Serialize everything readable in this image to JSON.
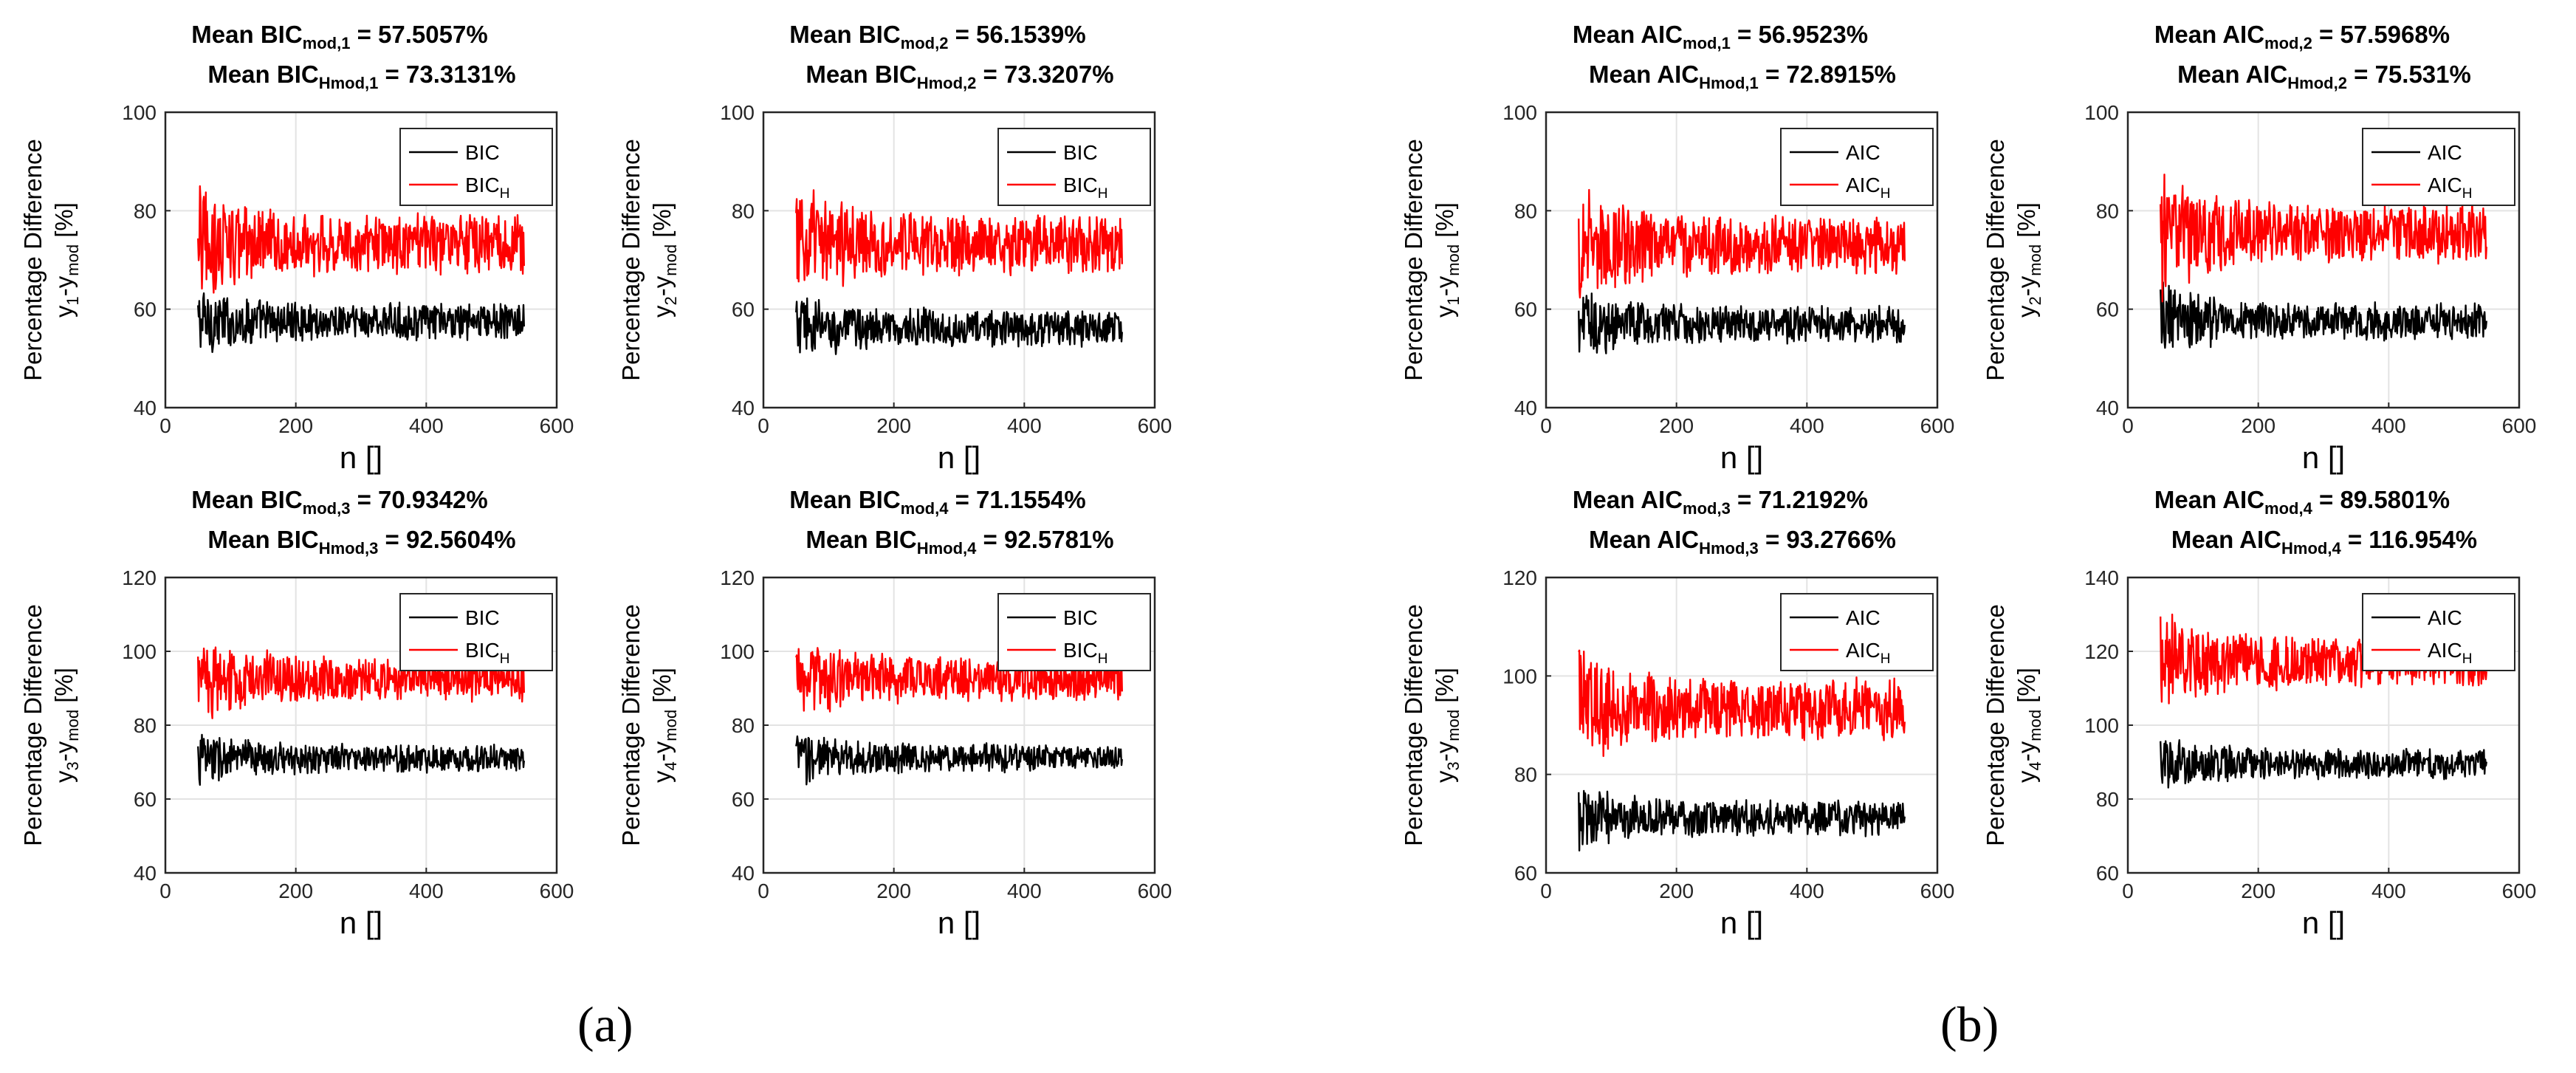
{
  "panel_labels": {
    "a": "(a)",
    "b": "(b)"
  },
  "chart_data": [
    {
      "id": "a1",
      "type": "line",
      "title": {
        "line1": {
          "prefix": "Mean BIC",
          "sub": "mod,1",
          "suffix": " = 57.5057%"
        },
        "line2": {
          "prefix": "Mean BIC",
          "sub": "Hmod,1",
          "suffix": " = 73.3131%"
        }
      },
      "ylabel": {
        "line1": "Percentage Difference",
        "pre1": "y",
        "sub1": "1",
        "mid": "-y",
        "sub2": "mod",
        "post": " [%]"
      },
      "xlabel": "n []",
      "xlim": [
        0,
        600
      ],
      "ylim": [
        40,
        100
      ],
      "xticks": [
        0,
        200,
        400,
        600
      ],
      "yticks": [
        40,
        60,
        80,
        100
      ],
      "grid": true,
      "legend": [
        {
          "base": "BIC",
          "sub": "",
          "color": "#000000"
        },
        {
          "base": "BIC",
          "sub": "H",
          "color": "#ff0000"
        }
      ],
      "legend_position": "top-right",
      "x_range": [
        50,
        550
      ],
      "series": [
        {
          "name": "BIC",
          "color": "#000000",
          "mean": 57.5,
          "noise": 2.6,
          "start_noise": 5.5
        },
        {
          "name": "BIC_H",
          "color": "#ff0000",
          "mean": 73.3,
          "noise": 4.2,
          "start_noise": 9
        }
      ]
    },
    {
      "id": "a2",
      "type": "line",
      "title": {
        "line1": {
          "prefix": "Mean BIC",
          "sub": "mod,2",
          "suffix": " = 56.1539%"
        },
        "line2": {
          "prefix": "Mean BIC",
          "sub": "Hmod,2",
          "suffix": " = 73.3207%"
        }
      },
      "ylabel": {
        "line1": "Percentage Difference",
        "pre1": "y",
        "sub1": "2",
        "mid": "-y",
        "sub2": "mod",
        "post": " [%]"
      },
      "xlabel": "n []",
      "xlim": [
        0,
        600
      ],
      "ylim": [
        40,
        100
      ],
      "xticks": [
        0,
        200,
        400,
        600
      ],
      "yticks": [
        40,
        60,
        80,
        100
      ],
      "grid": true,
      "legend": [
        {
          "base": "BIC",
          "sub": "",
          "color": "#000000"
        },
        {
          "base": "BIC",
          "sub": "H",
          "color": "#ff0000"
        }
      ],
      "legend_position": "top-right",
      "x_range": [
        50,
        550
      ],
      "series": [
        {
          "name": "BIC",
          "color": "#000000",
          "mean": 56.2,
          "noise": 2.6,
          "start_noise": 5.5
        },
        {
          "name": "BIC_H",
          "color": "#ff0000",
          "mean": 73.3,
          "noise": 4.2,
          "start_noise": 9
        }
      ]
    },
    {
      "id": "a3",
      "type": "line",
      "title": {
        "line1": {
          "prefix": "Mean BIC",
          "sub": "mod,3",
          "suffix": " = 70.9342%"
        },
        "line2": {
          "prefix": "Mean BIC",
          "sub": "Hmod,3",
          "suffix": " = 92.5604%"
        }
      },
      "ylabel": {
        "line1": "Percentage Difference",
        "pre1": "y",
        "sub1": "3",
        "mid": "-y",
        "sub2": "mod",
        "post": " [%]"
      },
      "xlabel": "n []",
      "xlim": [
        0,
        600
      ],
      "ylim": [
        40,
        120
      ],
      "xticks": [
        0,
        200,
        400,
        600
      ],
      "yticks": [
        40,
        60,
        80,
        100,
        120
      ],
      "grid": true,
      "legend": [
        {
          "base": "BIC",
          "sub": "",
          "color": "#000000"
        },
        {
          "base": "BIC",
          "sub": "H",
          "color": "#ff0000"
        }
      ],
      "legend_position": "top-right",
      "x_range": [
        50,
        550
      ],
      "series": [
        {
          "name": "BIC",
          "color": "#000000",
          "mean": 71,
          "noise": 2.6,
          "start_noise": 6
        },
        {
          "name": "BIC_H",
          "color": "#ff0000",
          "mean": 92.6,
          "noise": 4.2,
          "start_noise": 9
        }
      ]
    },
    {
      "id": "a4",
      "type": "line",
      "title": {
        "line1": {
          "prefix": "Mean BIC",
          "sub": "mod,4",
          "suffix": " = 71.1554%"
        },
        "line2": {
          "prefix": "Mean BIC",
          "sub": "Hmod,4",
          "suffix": " = 92.5781%"
        }
      },
      "ylabel": {
        "line1": "Percentage Difference",
        "pre1": "y",
        "sub1": "4",
        "mid": "-y",
        "sub2": "mod",
        "post": " [%]"
      },
      "xlabel": "n []",
      "xlim": [
        0,
        600
      ],
      "ylim": [
        40,
        120
      ],
      "xticks": [
        0,
        200,
        400,
        600
      ],
      "yticks": [
        40,
        60,
        80,
        100,
        120
      ],
      "grid": true,
      "legend": [
        {
          "base": "BIC",
          "sub": "",
          "color": "#000000"
        },
        {
          "base": "BIC",
          "sub": "H",
          "color": "#ff0000"
        }
      ],
      "legend_position": "top-right",
      "x_range": [
        50,
        550
      ],
      "series": [
        {
          "name": "BIC",
          "color": "#000000",
          "mean": 71.2,
          "noise": 2.6,
          "start_noise": 6
        },
        {
          "name": "BIC_H",
          "color": "#ff0000",
          "mean": 92.6,
          "noise": 4.2,
          "start_noise": 9
        }
      ]
    },
    {
      "id": "b1",
      "type": "line",
      "title": {
        "line1": {
          "prefix": "Mean AIC",
          "sub": "mod,1",
          "suffix": " = 56.9523%"
        },
        "line2": {
          "prefix": "Mean AIC",
          "sub": "Hmod,1",
          "suffix": " = 72.8915%"
        }
      },
      "ylabel": {
        "line1": "Percentage Difference",
        "pre1": "y",
        "sub1": "1",
        "mid": "-y",
        "sub2": "mod",
        "post": " [%]"
      },
      "xlabel": "n []",
      "xlim": [
        0,
        600
      ],
      "ylim": [
        40,
        100
      ],
      "xticks": [
        0,
        200,
        400,
        600
      ],
      "yticks": [
        40,
        60,
        80,
        100
      ],
      "grid": true,
      "legend": [
        {
          "base": "AIC",
          "sub": "",
          "color": "#000000"
        },
        {
          "base": "AIC",
          "sub": "H",
          "color": "#ff0000"
        }
      ],
      "legend_position": "top-right",
      "x_range": [
        50,
        550
      ],
      "series": [
        {
          "name": "AIC",
          "color": "#000000",
          "mean": 57,
          "noise": 2.6,
          "start_noise": 5.5
        },
        {
          "name": "AIC_H",
          "color": "#ff0000",
          "mean": 72.9,
          "noise": 4.2,
          "start_noise": 9
        }
      ]
    },
    {
      "id": "b2",
      "type": "line",
      "title": {
        "line1": {
          "prefix": "Mean AIC",
          "sub": "mod,2",
          "suffix": " = 57.5968%"
        },
        "line2": {
          "prefix": "Mean AIC",
          "sub": "Hmod,2",
          "suffix": " = 75.531%"
        }
      },
      "ylabel": {
        "line1": "Percentage Difference",
        "pre1": "y",
        "sub1": "2",
        "mid": "-y",
        "sub2": "mod",
        "post": " [%]"
      },
      "xlabel": "n []",
      "xlim": [
        0,
        600
      ],
      "ylim": [
        40,
        100
      ],
      "xticks": [
        0,
        200,
        400,
        600
      ],
      "yticks": [
        40,
        60,
        80,
        100
      ],
      "grid": true,
      "legend": [
        {
          "base": "AIC",
          "sub": "",
          "color": "#000000"
        },
        {
          "base": "AIC",
          "sub": "H",
          "color": "#ff0000"
        }
      ],
      "legend_position": "top-right",
      "x_range": [
        50,
        550
      ],
      "series": [
        {
          "name": "AIC",
          "color": "#000000",
          "mean": 57.6,
          "noise": 2.6,
          "start_noise": 6
        },
        {
          "name": "AIC_H",
          "color": "#ff0000",
          "mean": 75.5,
          "noise": 4.2,
          "start_noise": 10
        }
      ]
    },
    {
      "id": "b3",
      "type": "line",
      "title": {
        "line1": {
          "prefix": "Mean AIC",
          "sub": "mod,3",
          "suffix": " = 71.2192%"
        },
        "line2": {
          "prefix": "Mean AIC",
          "sub": "Hmod,3",
          "suffix": " = 93.2766%"
        }
      },
      "ylabel": {
        "line1": "Percentage Difference",
        "pre1": "y",
        "sub1": "3",
        "mid": "-y",
        "sub2": "mod",
        "post": " [%]"
      },
      "xlabel": "n []",
      "xlim": [
        0,
        600
      ],
      "ylim": [
        60,
        120
      ],
      "xticks": [
        0,
        200,
        400,
        600
      ],
      "yticks": [
        60,
        80,
        100,
        120
      ],
      "grid": true,
      "legend": [
        {
          "base": "AIC",
          "sub": "",
          "color": "#000000"
        },
        {
          "base": "AIC",
          "sub": "H",
          "color": "#ff0000"
        }
      ],
      "legend_position": "top-right",
      "x_range": [
        50,
        550
      ],
      "series": [
        {
          "name": "AIC",
          "color": "#000000",
          "mean": 71.2,
          "noise": 2.6,
          "start_noise": 5
        },
        {
          "name": "AIC_H",
          "color": "#ff0000",
          "mean": 93.3,
          "noise": 4.4,
          "start_noise": 10
        }
      ]
    },
    {
      "id": "b4",
      "type": "line",
      "title": {
        "line1": {
          "prefix": "Mean AIC",
          "sub": "mod,4",
          "suffix": " = 89.5801%"
        },
        "line2": {
          "prefix": "Mean AIC",
          "sub": "Hmod,4",
          "suffix": " = 116.954%"
        }
      },
      "ylabel": {
        "line1": "Percentage Difference",
        "pre1": "y",
        "sub1": "4",
        "mid": "-y",
        "sub2": "mod",
        "post": " [%]"
      },
      "xlabel": "n []",
      "xlim": [
        0,
        600
      ],
      "ylim": [
        60,
        140
      ],
      "xticks": [
        0,
        200,
        400,
        600
      ],
      "yticks": [
        60,
        80,
        100,
        120,
        140
      ],
      "grid": true,
      "legend": [
        {
          "base": "AIC",
          "sub": "",
          "color": "#000000"
        },
        {
          "base": "AIC",
          "sub": "H",
          "color": "#ff0000"
        }
      ],
      "legend_position": "top-right",
      "x_range": [
        50,
        550
      ],
      "series": [
        {
          "name": "AIC",
          "color": "#000000",
          "mean": 89.6,
          "noise": 2.8,
          "start_noise": 6
        },
        {
          "name": "AIC_H",
          "color": "#ff0000",
          "mean": 117,
          "noise": 4.8,
          "start_noise": 11
        }
      ]
    }
  ]
}
